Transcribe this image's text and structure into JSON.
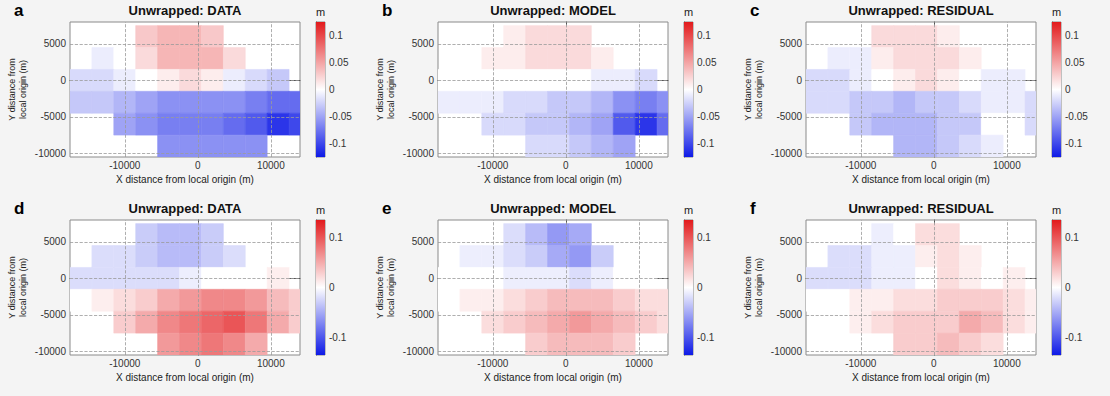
{
  "chart_data": [
    {
      "type": "heatmap",
      "title": "Unwrapped: DATA",
      "annotation": "a",
      "xlabel": "X distance from local origin (m)",
      "ylabel": "Y distance from local origin (m)",
      "xlim": [
        -17500,
        14000
      ],
      "ylim": [
        -10500,
        8000
      ],
      "xticks": [
        -10000,
        0,
        10000
      ],
      "yticks": [
        -10000,
        -5000,
        0,
        5000
      ],
      "grid": true,
      "x": [
        -16000,
        -13000,
        -10000,
        -7000,
        -4000,
        -1000,
        2000,
        5000,
        8000,
        11000,
        14000
      ],
      "y": [
        6000,
        3000,
        0,
        -3000,
        -6000,
        -9000
      ],
      "values": [
        [
          null,
          null,
          null,
          0.03,
          0.04,
          0.04,
          0.03,
          null,
          null,
          null,
          null
        ],
        [
          null,
          -0.01,
          0.0,
          0.02,
          0.04,
          0.04,
          0.04,
          0.02,
          null,
          null,
          null
        ],
        [
          -0.02,
          -0.02,
          -0.01,
          0.0,
          0.01,
          0.02,
          0.01,
          -0.01,
          -0.02,
          -0.03,
          null
        ],
        [
          -0.03,
          -0.03,
          -0.04,
          -0.05,
          -0.06,
          -0.06,
          -0.06,
          -0.06,
          -0.07,
          -0.08,
          -0.08
        ],
        [
          null,
          null,
          -0.05,
          -0.06,
          -0.07,
          -0.07,
          -0.07,
          -0.08,
          -0.09,
          -0.11,
          -0.1
        ],
        [
          null,
          null,
          null,
          null,
          -0.06,
          -0.06,
          -0.06,
          -0.06,
          -0.06,
          null,
          null
        ]
      ],
      "colorbar": {
        "label": "m",
        "range": [
          -0.125,
          0.125
        ],
        "ticks": [
          -0.1,
          -0.05,
          0,
          0.05,
          0.1
        ]
      }
    },
    {
      "type": "heatmap",
      "title": "Unwrapped: MODEL",
      "annotation": "b",
      "xlabel": "X distance from local origin (m)",
      "ylabel": "Y distance from local origin (m)",
      "xlim": [
        -17500,
        14000
      ],
      "ylim": [
        -10500,
        8000
      ],
      "xticks": [
        -10000,
        0,
        10000
      ],
      "yticks": [
        -10000,
        -5000,
        0,
        5000
      ],
      "grid": true,
      "x": [
        -16000,
        -13000,
        -10000,
        -7000,
        -4000,
        -1000,
        2000,
        5000,
        8000,
        11000,
        14000
      ],
      "y": [
        6000,
        3000,
        0,
        -3000,
        -6000,
        -9000
      ],
      "values": [
        [
          null,
          null,
          null,
          0.01,
          0.02,
          0.02,
          0.02,
          null,
          null,
          null,
          null
        ],
        [
          null,
          0.0,
          0.01,
          0.01,
          0.02,
          0.02,
          0.02,
          0.01,
          null,
          null,
          null
        ],
        [
          0.0,
          0.0,
          0.0,
          0.0,
          0.0,
          0.0,
          0.0,
          -0.01,
          -0.01,
          -0.02,
          null
        ],
        [
          -0.01,
          -0.01,
          -0.01,
          -0.02,
          -0.02,
          -0.03,
          -0.03,
          -0.04,
          -0.06,
          -0.07,
          -0.06
        ],
        [
          null,
          null,
          -0.02,
          -0.02,
          -0.03,
          -0.03,
          -0.04,
          -0.05,
          -0.09,
          -0.11,
          -0.08
        ],
        [
          null,
          null,
          null,
          null,
          -0.02,
          -0.02,
          -0.03,
          -0.04,
          -0.05,
          null,
          null
        ]
      ],
      "colorbar": {
        "label": "m",
        "range": [
          -0.125,
          0.125
        ],
        "ticks": [
          -0.1,
          -0.05,
          0,
          0.05,
          0.1
        ]
      }
    },
    {
      "type": "heatmap",
      "title": "Unwrapped: RESIDUAL",
      "annotation": "c",
      "xlabel": "X distance from local origin (m)",
      "ylabel": "Y distance from local origin (m)",
      "xlim": [
        -17500,
        14000
      ],
      "ylim": [
        -10500,
        8000
      ],
      "xticks": [
        -10000,
        0,
        10000
      ],
      "yticks": [
        -10000,
        -5000,
        0,
        5000
      ],
      "grid": true,
      "x": [
        -16000,
        -13000,
        -10000,
        -7000,
        -4000,
        -1000,
        2000,
        5000,
        8000,
        11000,
        14000
      ],
      "y": [
        6000,
        3000,
        0,
        -3000,
        -6000,
        -9000
      ],
      "values": [
        [
          null,
          null,
          null,
          0.02,
          0.02,
          0.02,
          0.01,
          null,
          null,
          null,
          null
        ],
        [
          null,
          -0.01,
          -0.01,
          0.01,
          0.02,
          0.02,
          0.02,
          0.01,
          null,
          null,
          null
        ],
        [
          -0.02,
          -0.02,
          -0.01,
          0.0,
          0.01,
          0.02,
          0.01,
          0.0,
          -0.01,
          -0.01,
          null
        ],
        [
          -0.02,
          -0.02,
          -0.03,
          -0.03,
          -0.04,
          -0.03,
          -0.03,
          -0.02,
          -0.01,
          -0.01,
          -0.02
        ],
        [
          null,
          null,
          -0.03,
          -0.04,
          -0.04,
          -0.04,
          -0.03,
          -0.03,
          0.0,
          0.0,
          -0.02
        ],
        [
          null,
          null,
          null,
          null,
          -0.04,
          -0.04,
          -0.03,
          -0.02,
          -0.01,
          null,
          null
        ]
      ],
      "colorbar": {
        "label": "m",
        "range": [
          -0.125,
          0.125
        ],
        "ticks": [
          -0.1,
          -0.05,
          0,
          0.05,
          0.1
        ]
      }
    },
    {
      "type": "heatmap",
      "title": "Unwrapped: DATA",
      "annotation": "d",
      "xlabel": "X distance from local origin (m)",
      "ylabel": "Y distance from local origin (m)",
      "xlim": [
        -17500,
        14000
      ],
      "ylim": [
        -10500,
        8000
      ],
      "xticks": [
        -10000,
        0,
        10000
      ],
      "yticks": [
        -10000,
        -5000,
        0,
        5000
      ],
      "grid": true,
      "x": [
        -16000,
        -13000,
        -10000,
        -7000,
        -4000,
        -1000,
        2000,
        5000,
        8000,
        11000,
        14000
      ],
      "y": [
        6000,
        3000,
        0,
        -3000,
        -6000,
        -9000
      ],
      "values": [
        [
          null,
          null,
          null,
          -0.03,
          -0.04,
          -0.04,
          -0.03,
          null,
          null,
          null,
          null
        ],
        [
          null,
          -0.02,
          -0.02,
          -0.03,
          -0.04,
          -0.04,
          -0.03,
          -0.02,
          null,
          null,
          null
        ],
        [
          -0.02,
          -0.02,
          -0.02,
          -0.02,
          -0.02,
          -0.01,
          0.0,
          0.0,
          0.0,
          0.01,
          null
        ],
        [
          0.0,
          0.01,
          0.02,
          0.03,
          0.05,
          0.06,
          0.07,
          0.07,
          0.06,
          0.04,
          0.03
        ],
        [
          null,
          null,
          0.03,
          0.05,
          0.07,
          0.08,
          0.09,
          0.1,
          0.08,
          0.05,
          0.03
        ],
        [
          null,
          null,
          null,
          null,
          0.06,
          0.07,
          0.08,
          0.07,
          0.05,
          null,
          null
        ]
      ],
      "colorbar": {
        "label": "m",
        "range": [
          -0.135,
          0.135
        ],
        "ticks": [
          -0.1,
          0,
          0.1
        ]
      }
    },
    {
      "type": "heatmap",
      "title": "Unwrapped: MODEL",
      "annotation": "e",
      "xlabel": "X distance from local origin (m)",
      "ylabel": "Y distance from local origin (m)",
      "xlim": [
        -17500,
        14000
      ],
      "ylim": [
        -10500,
        8000
      ],
      "xticks": [
        -10000,
        0,
        10000
      ],
      "yticks": [
        -10000,
        -5000,
        0,
        5000
      ],
      "grid": true,
      "x": [
        -16000,
        -13000,
        -10000,
        -7000,
        -4000,
        -1000,
        2000,
        5000,
        8000,
        11000,
        14000
      ],
      "y": [
        6000,
        3000,
        0,
        -3000,
        -6000,
        -9000
      ],
      "values": [
        [
          null,
          null,
          null,
          -0.02,
          -0.04,
          -0.06,
          -0.05,
          null,
          null,
          null,
          null
        ],
        [
          null,
          -0.01,
          -0.01,
          -0.02,
          -0.03,
          -0.05,
          -0.06,
          -0.03,
          null,
          null,
          null
        ],
        [
          0.0,
          0.0,
          0.0,
          -0.01,
          -0.01,
          -0.01,
          -0.02,
          -0.01,
          0.0,
          0.0,
          null
        ],
        [
          0.0,
          0.01,
          0.01,
          0.02,
          0.03,
          0.04,
          0.04,
          0.04,
          0.03,
          0.02,
          0.02
        ],
        [
          null,
          null,
          0.02,
          0.03,
          0.04,
          0.05,
          0.06,
          0.05,
          0.04,
          0.03,
          0.02
        ],
        [
          null,
          null,
          null,
          null,
          0.03,
          0.04,
          0.04,
          0.04,
          0.03,
          null,
          null
        ]
      ],
      "colorbar": {
        "label": "m",
        "range": [
          -0.135,
          0.135
        ],
        "ticks": [
          -0.1,
          0,
          0.1
        ]
      }
    },
    {
      "type": "heatmap",
      "title": "Unwrapped: RESIDUAL",
      "annotation": "f",
      "xlabel": "X distance from local origin (m)",
      "ylabel": "Y distance from local origin (m)",
      "xlim": [
        -17500,
        14000
      ],
      "ylim": [
        -10500,
        8000
      ],
      "xticks": [
        -10000,
        0,
        10000
      ],
      "yticks": [
        -10000,
        -5000,
        0,
        5000
      ],
      "grid": true,
      "x": [
        -16000,
        -13000,
        -10000,
        -7000,
        -4000,
        -1000,
        2000,
        5000,
        8000,
        11000,
        14000
      ],
      "y": [
        6000,
        3000,
        0,
        -3000,
        -6000,
        -9000
      ],
      "values": [
        [
          null,
          null,
          null,
          -0.01,
          0.0,
          0.02,
          0.02,
          null,
          null,
          null,
          null
        ],
        [
          null,
          -0.02,
          -0.02,
          -0.01,
          -0.01,
          0.01,
          0.02,
          0.01,
          null,
          null,
          null
        ],
        [
          -0.02,
          -0.02,
          -0.02,
          -0.01,
          -0.01,
          0.0,
          0.02,
          0.01,
          0.0,
          0.01,
          null
        ],
        [
          0.0,
          0.0,
          0.01,
          0.01,
          0.02,
          0.02,
          0.03,
          0.03,
          0.03,
          0.02,
          0.01
        ],
        [
          null,
          null,
          0.01,
          0.02,
          0.03,
          0.03,
          0.03,
          0.05,
          0.04,
          0.02,
          0.01
        ],
        [
          null,
          null,
          null,
          null,
          0.03,
          0.03,
          0.04,
          0.03,
          0.02,
          null,
          null
        ]
      ],
      "colorbar": {
        "label": "m",
        "range": [
          -0.135,
          0.135
        ],
        "ticks": [
          -0.1,
          0,
          0.1
        ]
      }
    }
  ]
}
